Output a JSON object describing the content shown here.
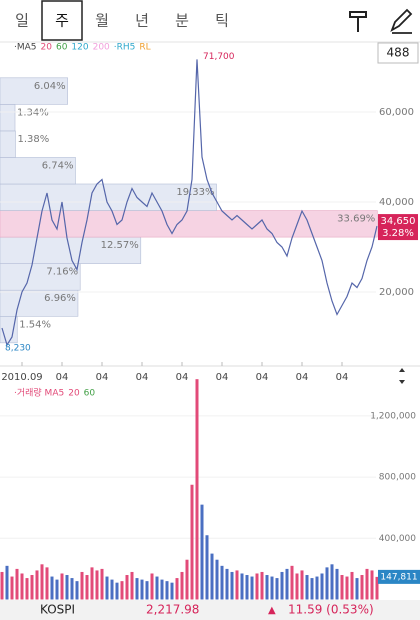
{
  "tabs": {
    "items": [
      "일",
      "주",
      "월",
      "년",
      "분",
      "틱"
    ],
    "selected": 1
  },
  "legend": [
    {
      "label": "·MA5",
      "color": "#444444"
    },
    {
      "label": "20",
      "color": "#e24a78"
    },
    {
      "label": "60",
      "color": "#43a047"
    },
    {
      "label": "120",
      "color": "#2fa8cc"
    },
    {
      "label": "200",
      "color": "#f2a0dc"
    },
    {
      "label": "·RH5",
      "color": "#2fa8cc"
    },
    {
      "label": "RL",
      "color": "#f0a030"
    }
  ],
  "bar_count": 488,
  "price": {
    "ylim": [
      5000,
      75000
    ],
    "yticks": [
      {
        "value": 20000,
        "label": "20,000"
      },
      {
        "value": 40000,
        "label": "40,000"
      },
      {
        "value": 60000,
        "label": "60,000"
      }
    ],
    "xticks": [
      {
        "value": 4,
        "label": "2010.09"
      },
      {
        "value": 12,
        "label": "04"
      },
      {
        "value": 20,
        "label": "04"
      },
      {
        "value": 28,
        "label": "04"
      },
      {
        "value": 36,
        "label": "04"
      },
      {
        "value": 44,
        "label": "04"
      },
      {
        "value": 52,
        "label": "04"
      },
      {
        "value": 60,
        "label": "04"
      },
      {
        "value": 68,
        "label": "04"
      }
    ],
    "values": [
      12000,
      8230,
      10000,
      16000,
      20000,
      22000,
      26000,
      32000,
      38000,
      42000,
      36000,
      34000,
      40000,
      32000,
      27000,
      25000,
      31000,
      36000,
      42000,
      44000,
      45000,
      40000,
      38000,
      35000,
      36000,
      40000,
      43000,
      41000,
      40000,
      39000,
      42000,
      40000,
      38000,
      35000,
      33000,
      35000,
      36000,
      38000,
      45000,
      71700,
      50000,
      45000,
      42000,
      40000,
      38000,
      37000,
      36000,
      37000,
      36000,
      35000,
      34000,
      35000,
      36000,
      34000,
      33000,
      31000,
      30000,
      28000,
      32000,
      35000,
      38000,
      36000,
      33000,
      30000,
      27000,
      22000,
      18000,
      15000,
      17000,
      19000,
      22000,
      21000,
      23000,
      27000,
      30000,
      34650
    ],
    "high_label": "71,700",
    "low_label": "8,230",
    "current_label": "34,650",
    "current_change": "3.28%",
    "color": "#5566aa",
    "profile": {
      "bins": [
        8700,
        14600,
        20400,
        26300,
        32200,
        38100,
        44000,
        49900,
        55800,
        61700,
        67600
      ],
      "percents": [
        1.54,
        6.96,
        7.16,
        12.57,
        33.69,
        19.33,
        6.74,
        1.38,
        1.34,
        6.04
      ],
      "labels": [
        "1.54%",
        "6.96%",
        "7.16%",
        "12.57%",
        "33.69%",
        "19.33%",
        "6.74%",
        "1.38%",
        "1.34%",
        "6.04%"
      ]
    }
  },
  "volume": {
    "legend": [
      {
        "label": "·거래량 MA5",
        "color": "#e24a78"
      },
      {
        "label": "20",
        "color": "#e24a78"
      },
      {
        "label": "60",
        "color": "#43a047"
      }
    ],
    "ylim": [
      0,
      1500000
    ],
    "yticks": [
      {
        "value": 400000,
        "label": "400,000"
      },
      {
        "value": 800000,
        "label": "800,000"
      },
      {
        "value": 1200000,
        "label": "1,200,000"
      }
    ],
    "values": [
      180000,
      220000,
      150000,
      200000,
      170000,
      140000,
      160000,
      190000,
      230000,
      210000,
      150000,
      130000,
      170000,
      160000,
      140000,
      120000,
      180000,
      160000,
      210000,
      190000,
      200000,
      150000,
      130000,
      110000,
      120000,
      160000,
      180000,
      140000,
      130000,
      120000,
      170000,
      150000,
      130000,
      120000,
      110000,
      140000,
      180000,
      260000,
      750000,
      1440000,
      620000,
      420000,
      300000,
      260000,
      220000,
      200000,
      180000,
      190000,
      170000,
      160000,
      150000,
      170000,
      180000,
      160000,
      150000,
      140000,
      180000,
      200000,
      220000,
      170000,
      190000,
      160000,
      140000,
      150000,
      170000,
      210000,
      230000,
      200000,
      160000,
      150000,
      180000,
      140000,
      160000,
      200000,
      190000,
      147811
    ],
    "last_label": "147,811"
  },
  "footer": {
    "index": "KOSPI",
    "value": "2,217.98",
    "arrow": "▲",
    "change": "11.59 (0.53%)"
  }
}
